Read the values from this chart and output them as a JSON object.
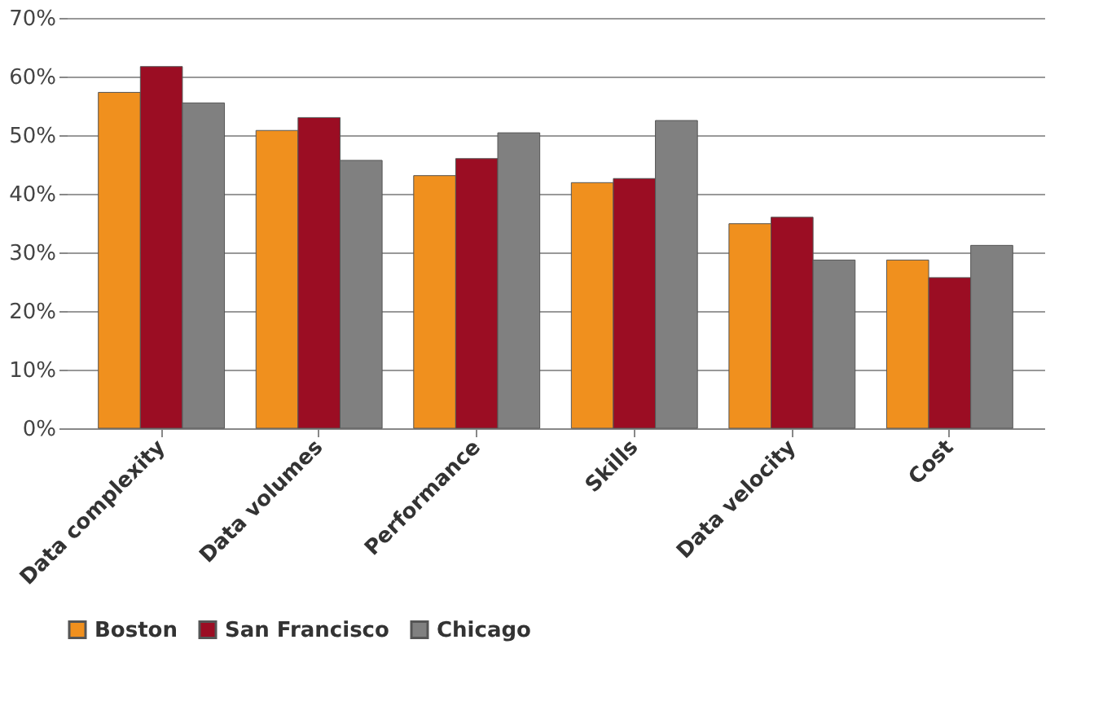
{
  "chart_data": {
    "type": "bar",
    "categories": [
      "Data complexity",
      "Data volumes",
      "Performance",
      "Skills",
      "Data velocity",
      "Cost"
    ],
    "series": [
      {
        "name": "Boston",
        "color": "#f0901e",
        "values": [
          57.3,
          50.8,
          43.1,
          41.9,
          34.9,
          28.7
        ]
      },
      {
        "name": "San Francisco",
        "color": "#9b0d23",
        "values": [
          61.7,
          53.0,
          46.0,
          42.6,
          36.0,
          25.7
        ]
      },
      {
        "name": "Chicago",
        "color": "#808080",
        "values": [
          55.5,
          45.7,
          50.4,
          52.5,
          28.7,
          31.2
        ]
      }
    ],
    "ylim": [
      0,
      70
    ],
    "yticks": [
      {
        "value": 0,
        "label": "0%"
      },
      {
        "value": 10,
        "label": "10%"
      },
      {
        "value": 20,
        "label": "20%"
      },
      {
        "value": 30,
        "label": "30%"
      },
      {
        "value": 40,
        "label": "40%"
      },
      {
        "value": 50,
        "label": "50%"
      },
      {
        "value": 60,
        "label": "60%"
      },
      {
        "value": 70,
        "label": "70%"
      }
    ],
    "grid": "y",
    "legend": "bottom"
  }
}
